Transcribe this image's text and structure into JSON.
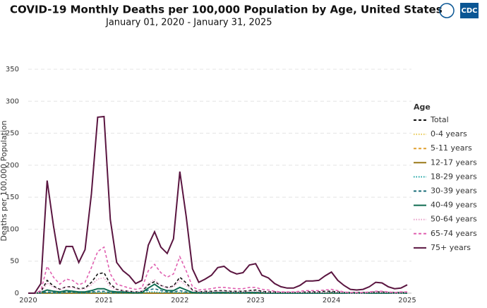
{
  "logo_text": "CDC",
  "chart_data": {
    "type": "line",
    "title": "COVID-19 Monthly Deaths per 100,000 Population by Age, United States",
    "subtitle": "January 01, 2020 - January 31, 2025",
    "y_label": "Deaths per 100,000 Population",
    "legend_title": "Age",
    "legend_position": "right",
    "grid": true,
    "ylim": [
      0,
      350
    ],
    "yticks": [
      0,
      50,
      100,
      150,
      200,
      250,
      300,
      350
    ],
    "categories": [
      "2020",
      null,
      null,
      null,
      null,
      null,
      null,
      null,
      null,
      null,
      null,
      null,
      "2021",
      null,
      null,
      null,
      null,
      null,
      null,
      null,
      null,
      null,
      null,
      null,
      "2022",
      null,
      null,
      null,
      null,
      null,
      null,
      null,
      null,
      null,
      null,
      null,
      "2023",
      null,
      null,
      null,
      null,
      null,
      null,
      null,
      null,
      null,
      null,
      null,
      "2024",
      null,
      null,
      null,
      null,
      null,
      null,
      null,
      null,
      null,
      null,
      null,
      "2025"
    ],
    "series": [
      {
        "name": "Total",
        "color": "#111111",
        "style": "dashed",
        "values": [
          0,
          0,
          2,
          20,
          11,
          6,
          10,
          10,
          7,
          8,
          17,
          30,
          32,
          14,
          6,
          4,
          3,
          2,
          3,
          13,
          18,
          12,
          9,
          11,
          25,
          16,
          5,
          2,
          3,
          3,
          4,
          4,
          3,
          3,
          3,
          4,
          5,
          3,
          2,
          2,
          1,
          1,
          1,
          1,
          2,
          2,
          2,
          3,
          3,
          2,
          1,
          1,
          1,
          1,
          1,
          2,
          2,
          1,
          1,
          1,
          1
        ]
      },
      {
        "name": "0-4 years",
        "color": "#e8c850",
        "style": "dotted",
        "values": [
          0,
          0,
          0,
          0,
          0,
          0,
          0,
          0,
          0,
          0,
          0,
          0,
          0,
          0,
          0,
          0,
          0,
          0,
          0,
          0,
          0,
          0,
          0,
          0,
          0,
          0,
          0,
          0,
          0,
          0,
          0,
          0,
          0,
          0,
          0,
          0,
          0,
          0,
          0,
          0,
          0,
          0,
          0,
          0,
          0,
          0,
          0,
          0,
          0,
          0,
          0,
          0,
          0,
          0,
          0,
          0,
          0,
          0,
          0,
          0,
          0
        ]
      },
      {
        "name": "5-11 years",
        "color": "#e0a030",
        "style": "dashed",
        "values": [
          0,
          0,
          0,
          0,
          0,
          0,
          0,
          0,
          0,
          0,
          0,
          0,
          0,
          0,
          0,
          0,
          0,
          0,
          0,
          0,
          0,
          0,
          0,
          0,
          0,
          0,
          0,
          0,
          0,
          0,
          0,
          0,
          0,
          0,
          0,
          0,
          0,
          0,
          0,
          0,
          0,
          0,
          0,
          0,
          0,
          0,
          0,
          0,
          0,
          0,
          0,
          0,
          0,
          0,
          0,
          0,
          0,
          0,
          0,
          0,
          0
        ]
      },
      {
        "name": "12-17 years",
        "color": "#9a7818",
        "style": "solid",
        "values": [
          0,
          0,
          0,
          0,
          0,
          0,
          0,
          0,
          0,
          0,
          0,
          0,
          0,
          0,
          0,
          0,
          0,
          0,
          0,
          0,
          0,
          0,
          0,
          0,
          0,
          0,
          0,
          0,
          0,
          0,
          0,
          0,
          0,
          0,
          0,
          0,
          0,
          0,
          0,
          0,
          0,
          0,
          0,
          0,
          0,
          0,
          0,
          0,
          0,
          0,
          0,
          0,
          0,
          0,
          0,
          0,
          0,
          0,
          0,
          0,
          0
        ]
      },
      {
        "name": "18-29 years",
        "color": "#1aa3a3",
        "style": "dotted",
        "values": [
          0,
          0,
          0,
          1,
          0,
          0,
          1,
          1,
          0,
          0,
          1,
          1,
          1,
          0,
          0,
          0,
          0,
          0,
          0,
          2,
          2,
          1,
          1,
          1,
          1,
          1,
          0,
          0,
          0,
          0,
          0,
          0,
          0,
          0,
          0,
          0,
          0,
          0,
          0,
          0,
          0,
          0,
          0,
          0,
          0,
          0,
          0,
          0,
          0,
          0,
          0,
          0,
          0,
          0,
          0,
          0,
          0,
          0,
          0,
          0,
          0
        ]
      },
      {
        "name": "30-39 years",
        "color": "#1a6e7a",
        "style": "dashed",
        "values": [
          0,
          0,
          0,
          2,
          1,
          1,
          2,
          2,
          1,
          1,
          2,
          3,
          3,
          1,
          1,
          1,
          1,
          0,
          1,
          5,
          7,
          4,
          2,
          2,
          4,
          2,
          1,
          0,
          0,
          0,
          0,
          0,
          0,
          0,
          0,
          0,
          0,
          0,
          0,
          0,
          0,
          0,
          0,
          0,
          0,
          0,
          0,
          0,
          0,
          0,
          0,
          0,
          0,
          0,
          0,
          0,
          0,
          0,
          0,
          0,
          0
        ]
      },
      {
        "name": "40-49 years",
        "color": "#0f6b50",
        "style": "solid",
        "values": [
          0,
          0,
          1,
          5,
          3,
          2,
          4,
          3,
          2,
          2,
          4,
          7,
          7,
          3,
          2,
          2,
          1,
          1,
          1,
          8,
          14,
          7,
          4,
          4,
          9,
          5,
          1,
          1,
          1,
          1,
          1,
          1,
          1,
          1,
          1,
          1,
          1,
          1,
          0,
          0,
          0,
          0,
          0,
          0,
          0,
          0,
          0,
          0,
          1,
          0,
          0,
          0,
          0,
          0,
          0,
          0,
          0,
          0,
          0,
          0,
          0
        ]
      },
      {
        "name": "50-64 years",
        "color": "#e8a0c8",
        "style": "dotted",
        "values": [
          0,
          0,
          1,
          16,
          9,
          5,
          10,
          9,
          6,
          7,
          13,
          22,
          24,
          10,
          5,
          4,
          3,
          2,
          3,
          15,
          21,
          12,
          8,
          10,
          20,
          12,
          4,
          2,
          2,
          2,
          3,
          3,
          2,
          2,
          2,
          3,
          3,
          2,
          1,
          1,
          1,
          1,
          1,
          1,
          1,
          1,
          1,
          1,
          2,
          1,
          1,
          0,
          0,
          0,
          1,
          1,
          1,
          1,
          0,
          0,
          1
        ]
      },
      {
        "name": "65-74 years",
        "color": "#e060b0",
        "style": "dashed",
        "values": [
          0,
          0,
          4,
          42,
          25,
          14,
          22,
          20,
          13,
          17,
          40,
          65,
          72,
          30,
          14,
          11,
          8,
          6,
          8,
          35,
          45,
          32,
          25,
          30,
          57,
          35,
          10,
          5,
          6,
          7,
          9,
          9,
          8,
          7,
          7,
          9,
          9,
          6,
          5,
          3,
          2,
          2,
          2,
          3,
          4,
          4,
          4,
          5,
          6,
          4,
          2,
          1,
          1,
          1,
          2,
          3,
          3,
          2,
          1,
          2,
          2
        ]
      },
      {
        "name": "75+ years",
        "color": "#5a1540",
        "style": "solid",
        "values": [
          0,
          0,
          15,
          176,
          105,
          45,
          73,
          73,
          48,
          68,
          155,
          275,
          276,
          115,
          48,
          35,
          27,
          15,
          20,
          75,
          96,
          72,
          62,
          85,
          190,
          120,
          38,
          17,
          22,
          28,
          40,
          42,
          34,
          30,
          32,
          44,
          46,
          28,
          24,
          15,
          10,
          8,
          8,
          12,
          19,
          19,
          20,
          27,
          33,
          20,
          12,
          6,
          5,
          6,
          10,
          17,
          16,
          10,
          7,
          8,
          13
        ]
      }
    ]
  }
}
